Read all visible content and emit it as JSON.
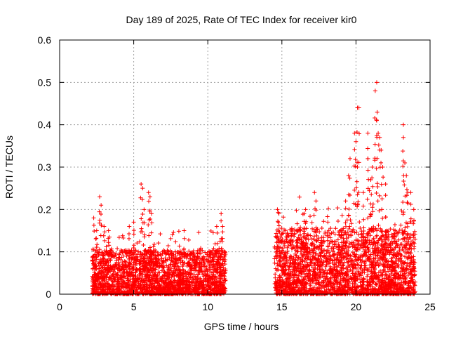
{
  "chart_data": {
    "type": "scatter",
    "title": "Day 189 of 2025, Rate Of TEC Index for receiver kir0",
    "xlabel": "GPS time / hours",
    "ylabel": "ROTI / TECUs",
    "xlim": [
      0,
      25
    ],
    "ylim": [
      0,
      0.6
    ],
    "x_ticks": [
      0,
      5,
      10,
      15,
      20,
      25
    ],
    "y_ticks": [
      0,
      0.1,
      0.2,
      0.3,
      0.4,
      0.5,
      0.6
    ],
    "x_tick_labels": [
      "0",
      "5",
      "10",
      "15",
      "20",
      "25"
    ],
    "y_tick_labels": [
      "0",
      "0.1",
      "0.2",
      "0.3",
      "0.4",
      "0.5",
      "0.6"
    ],
    "grid": true,
    "marker": "+",
    "marker_color": "#ff0000",
    "segments": [
      {
        "x_range": [
          2.2,
          11.2
        ],
        "typical_range": [
          0.0,
          0.08
        ]
      },
      {
        "x_range": [
          14.5,
          24.0
        ],
        "typical_range": [
          0.0,
          0.12
        ]
      }
    ],
    "peaks": [
      {
        "x": 2.3,
        "y": 0.18
      },
      {
        "x": 2.5,
        "y": 0.15
      },
      {
        "x": 2.7,
        "y": 0.23
      },
      {
        "x": 2.8,
        "y": 0.21
      },
      {
        "x": 3.0,
        "y": 0.16
      },
      {
        "x": 3.3,
        "y": 0.15
      },
      {
        "x": 4.7,
        "y": 0.16
      },
      {
        "x": 5.0,
        "y": 0.17
      },
      {
        "x": 5.5,
        "y": 0.26
      },
      {
        "x": 5.6,
        "y": 0.25
      },
      {
        "x": 5.7,
        "y": 0.2
      },
      {
        "x": 6.0,
        "y": 0.24
      },
      {
        "x": 6.1,
        "y": 0.23
      },
      {
        "x": 6.2,
        "y": 0.19
      },
      {
        "x": 8.4,
        "y": 0.15
      },
      {
        "x": 10.6,
        "y": 0.16
      },
      {
        "x": 10.9,
        "y": 0.19
      },
      {
        "x": 11.0,
        "y": 0.16
      },
      {
        "x": 14.7,
        "y": 0.2
      },
      {
        "x": 14.8,
        "y": 0.19
      },
      {
        "x": 16.0,
        "y": 0.15
      },
      {
        "x": 16.5,
        "y": 0.19
      },
      {
        "x": 16.6,
        "y": 0.2
      },
      {
        "x": 17.2,
        "y": 0.24
      },
      {
        "x": 17.3,
        "y": 0.22
      },
      {
        "x": 18.1,
        "y": 0.17
      },
      {
        "x": 19.3,
        "y": 0.22
      },
      {
        "x": 19.5,
        "y": 0.28
      },
      {
        "x": 19.6,
        "y": 0.32
      },
      {
        "x": 19.9,
        "y": 0.38
      },
      {
        "x": 20.0,
        "y": 0.36
      },
      {
        "x": 20.1,
        "y": 0.44
      },
      {
        "x": 20.2,
        "y": 0.44
      },
      {
        "x": 20.1,
        "y": 0.3
      },
      {
        "x": 20.5,
        "y": 0.24
      },
      {
        "x": 20.8,
        "y": 0.32
      },
      {
        "x": 20.8,
        "y": 0.38
      },
      {
        "x": 21.0,
        "y": 0.27
      },
      {
        "x": 21.1,
        "y": 0.3
      },
      {
        "x": 21.3,
        "y": 0.48
      },
      {
        "x": 21.4,
        "y": 0.5
      },
      {
        "x": 21.4,
        "y": 0.41
      },
      {
        "x": 21.5,
        "y": 0.38
      },
      {
        "x": 21.6,
        "y": 0.37
      },
      {
        "x": 21.7,
        "y": 0.34
      },
      {
        "x": 21.8,
        "y": 0.3
      },
      {
        "x": 22.0,
        "y": 0.26
      },
      {
        "x": 23.2,
        "y": 0.4
      },
      {
        "x": 23.2,
        "y": 0.37
      },
      {
        "x": 23.3,
        "y": 0.31
      },
      {
        "x": 23.4,
        "y": 0.28
      },
      {
        "x": 23.5,
        "y": 0.24
      },
      {
        "x": 23.7,
        "y": 0.24
      },
      {
        "x": 23.9,
        "y": 0.2
      }
    ]
  }
}
